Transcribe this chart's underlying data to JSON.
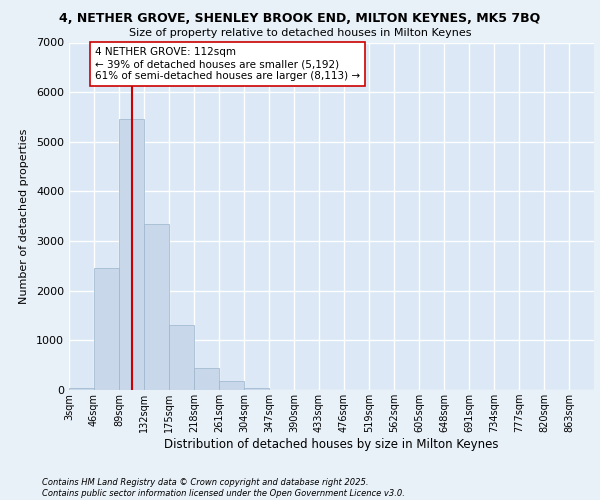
{
  "title_line1": "4, NETHER GROVE, SHENLEY BROOK END, MILTON KEYNES, MK5 7BQ",
  "title_line2": "Size of property relative to detached houses in Milton Keynes",
  "xlabel": "Distribution of detached houses by size in Milton Keynes",
  "ylabel": "Number of detached properties",
  "bar_color": "#c8d8ea",
  "bar_edge_color": "#9ab4cc",
  "background_color": "#dce8f5",
  "grid_color": "#ffffff",
  "property_line_color": "#cc0000",
  "property_size": 112,
  "annotation_text": "4 NETHER GROVE: 112sqm\n← 39% of detached houses are smaller (5,192)\n61% of semi-detached houses are larger (8,113) →",
  "footer_text": "Contains HM Land Registry data © Crown copyright and database right 2025.\nContains public sector information licensed under the Open Government Licence v3.0.",
  "bin_labels": [
    "3sqm",
    "46sqm",
    "89sqm",
    "132sqm",
    "175sqm",
    "218sqm",
    "261sqm",
    "304sqm",
    "347sqm",
    "390sqm",
    "433sqm",
    "476sqm",
    "519sqm",
    "562sqm",
    "605sqm",
    "648sqm",
    "691sqm",
    "734sqm",
    "777sqm",
    "820sqm",
    "863sqm"
  ],
  "bin_edges": [
    3,
    46,
    89,
    132,
    175,
    218,
    261,
    304,
    347,
    390,
    433,
    476,
    519,
    562,
    605,
    648,
    691,
    734,
    777,
    820,
    863
  ],
  "bar_heights": [
    50,
    2450,
    5450,
    3350,
    1300,
    450,
    180,
    50,
    0,
    0,
    0,
    0,
    0,
    0,
    0,
    0,
    0,
    0,
    0,
    0
  ],
  "ylim": [
    0,
    7000
  ],
  "yticks": [
    0,
    1000,
    2000,
    3000,
    4000,
    5000,
    6000,
    7000
  ],
  "fig_bg_color": "#e8f0f8"
}
